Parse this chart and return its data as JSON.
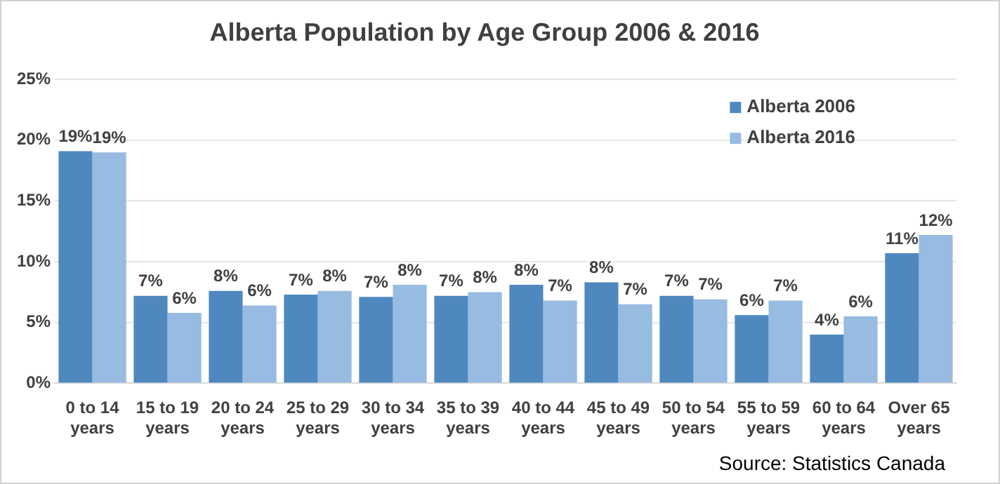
{
  "chart_data": {
    "type": "bar",
    "title": "Alberta Population by Age Group 2006 & 2016",
    "categories": [
      "0 to 14 years",
      "15 to 19 years",
      "20 to 24 years",
      "25 to 29 years",
      "30 to 34 years",
      "35 to 39 years",
      "40 to 44 years",
      "45 to 49 years",
      "50 to 54 years",
      "55 to 59 years",
      "60 to 64 years",
      "Over 65 years"
    ],
    "series": [
      {
        "name": "Alberta 2006",
        "color": "#4f88bf",
        "values": [
          19.1,
          7.2,
          7.6,
          7.3,
          7.1,
          7.2,
          8.1,
          8.3,
          7.2,
          5.6,
          4.0,
          10.7
        ],
        "value_labels": [
          "19%",
          "7%",
          "8%",
          "7%",
          "7%",
          "7%",
          "8%",
          "8%",
          "7%",
          "6%",
          "4%",
          "11%"
        ]
      },
      {
        "name": "Alberta 2016",
        "color": "#98bbe1",
        "values": [
          19.0,
          5.8,
          6.4,
          7.6,
          8.1,
          7.5,
          6.8,
          6.5,
          6.9,
          6.8,
          5.5,
          12.2
        ],
        "value_labels": [
          "19%",
          "6%",
          "6%",
          "8%",
          "8%",
          "8%",
          "7%",
          "7%",
          "7%",
          "7%",
          "6%",
          "12%"
        ]
      }
    ],
    "ylim": [
      0,
      25
    ],
    "yticks": [
      {
        "value": 0,
        "label": "0%"
      },
      {
        "value": 5,
        "label": "5%"
      },
      {
        "value": 10,
        "label": "10%"
      },
      {
        "value": 15,
        "label": "15%"
      },
      {
        "value": 20,
        "label": "20%"
      },
      {
        "value": 25,
        "label": "25%"
      }
    ],
    "grid": "y",
    "legend": "top right",
    "annotations": [
      "Source:  Statistics Canada"
    ]
  }
}
